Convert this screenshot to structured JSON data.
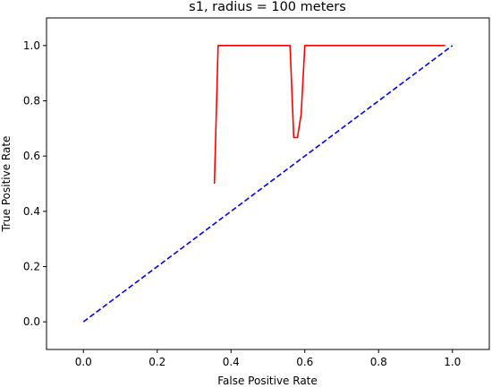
{
  "chart_data": {
    "type": "line",
    "title": "s1, radius = 100 meters",
    "xlabel": "False Positive Rate",
    "ylabel": "True Positive Rate",
    "xlim": [
      -0.1,
      1.1
    ],
    "ylim": [
      -0.1,
      1.1
    ],
    "xticks": [
      "0.0",
      "0.2",
      "0.4",
      "0.6",
      "0.8",
      "1.0"
    ],
    "yticks": [
      "0.0",
      "0.2",
      "0.4",
      "0.6",
      "0.8",
      "1.0"
    ],
    "grid": false,
    "series": [
      {
        "color": "#ff0000",
        "style": "solid",
        "x": [
          0.355,
          0.365,
          0.56,
          0.57,
          0.58,
          0.59,
          0.6,
          0.98
        ],
        "y": [
          0.5,
          1.0,
          1.0,
          0.667,
          0.667,
          0.75,
          1.0,
          1.0
        ]
      },
      {
        "color": "#0000ff",
        "style": "dashed",
        "x": [
          0.0,
          1.0
        ],
        "y": [
          0.0,
          1.0
        ]
      }
    ]
  }
}
